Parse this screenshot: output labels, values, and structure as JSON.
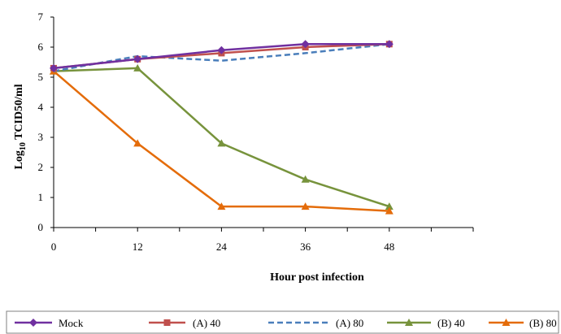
{
  "chart_data": {
    "type": "line",
    "x": [
      0,
      12,
      24,
      36,
      48
    ],
    "xlim": [
      0,
      60
    ],
    "ylim": [
      0,
      7
    ],
    "x_ticks": [
      "0",
      "12",
      "24",
      "36",
      "48"
    ],
    "y_ticks": [
      "0",
      "1",
      "2",
      "3",
      "4",
      "5",
      "6",
      "7"
    ],
    "xlabel": "Hour post infection",
    "ylabel_main": "Log",
    "ylabel_sub": "10",
    "ylabel_rest": " TCID50/ml",
    "grid": false,
    "legend_position": "bottom",
    "series": [
      {
        "name": "Mock",
        "values": [
          5.3,
          5.6,
          5.9,
          6.1,
          6.1
        ],
        "color": "#7030a0",
        "marker": "diamond",
        "dash": "solid"
      },
      {
        "name": "(A) 40",
        "values": [
          5.3,
          5.6,
          5.8,
          6.0,
          6.1
        ],
        "color": "#c0504d",
        "marker": "square",
        "dash": "solid"
      },
      {
        "name": "(A) 80",
        "values": [
          5.2,
          5.7,
          5.55,
          5.8,
          6.1
        ],
        "color": "#4a7ebb",
        "marker": "none",
        "dash": "dashed"
      },
      {
        "name": "(B) 40",
        "values": [
          5.2,
          5.3,
          2.8,
          1.6,
          0.7
        ],
        "color": "#77933c",
        "marker": "triangle",
        "dash": "solid"
      },
      {
        "name": "(B) 80",
        "values": [
          5.2,
          2.8,
          0.7,
          0.7,
          0.55
        ],
        "color": "#e46c0a",
        "marker": "triangle",
        "dash": "solid"
      }
    ]
  }
}
